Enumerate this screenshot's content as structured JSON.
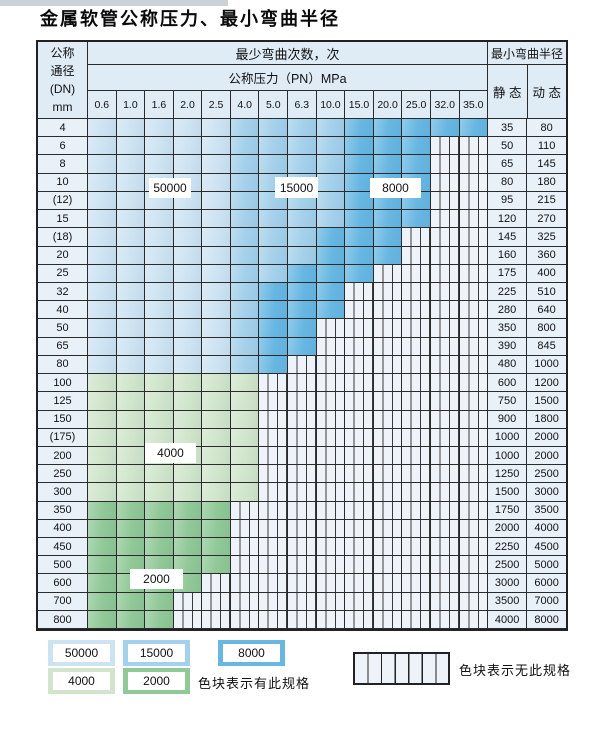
{
  "title": "金属软管公称压力、最小弯曲半径",
  "colors": {
    "cycles_50000": "#cde3f2",
    "cycles_15000": "#a3d0ea",
    "cycles_8000": "#67b7e2",
    "cycles_4000": "#d0e5cb",
    "cycles_2000": "#90c897",
    "no_spec_bg": "#edf3f9",
    "header_bg": "#dfecf6",
    "label_col_bg": "#e9f1f8",
    "grid_line": "#2b2b2b"
  },
  "table": {
    "header": {
      "dn_lines": [
        "公称",
        "通径",
        "(DN)",
        "mm"
      ],
      "bend_cycles_label": "最少弯曲次数，次",
      "pressure_label": "公称压力（PN）MPa",
      "pressure_values": [
        "0.6",
        "1.0",
        "1.6",
        "2.0",
        "2.5",
        "4.0",
        "5.0",
        "6.3",
        "10.0",
        "15.0",
        "20.0",
        "25.0",
        "32.0",
        "35.0"
      ],
      "radius_label": "最小弯曲半径",
      "static_label": "静 态",
      "dynamic_label": "动 态"
    },
    "rows": [
      {
        "dn": "4",
        "static": "35",
        "dynamic": "80",
        "cells": [
          "b1",
          "b1",
          "b1",
          "b1",
          "b1",
          "b2",
          "b2",
          "b2",
          "b2",
          "b3",
          "b3",
          "b3",
          "b3",
          "b3"
        ]
      },
      {
        "dn": "6",
        "static": "50",
        "dynamic": "110",
        "cells": [
          "b1",
          "b1",
          "b1",
          "b1",
          "b1",
          "b2",
          "b2",
          "b2",
          "b2",
          "b3",
          "b3",
          "b3",
          "x",
          "x"
        ]
      },
      {
        "dn": "8",
        "static": "65",
        "dynamic": "145",
        "cells": [
          "b1",
          "b1",
          "b1",
          "b1",
          "b1",
          "b2",
          "b2",
          "b2",
          "b2",
          "b3",
          "b3",
          "b3",
          "x",
          "x"
        ]
      },
      {
        "dn": "10",
        "static": "80",
        "dynamic": "180",
        "cells": [
          "b1",
          "b1",
          "b1",
          "b1",
          "b1",
          "b2",
          "b2",
          "b2",
          "b2",
          "b3",
          "b3",
          "b3",
          "x",
          "x"
        ]
      },
      {
        "dn": "(12)",
        "static": "95",
        "dynamic": "215",
        "cells": [
          "b1",
          "b1",
          "b1",
          "b1",
          "b1",
          "b2",
          "b2",
          "b2",
          "b2",
          "b3",
          "b3",
          "b3",
          "x",
          "x"
        ]
      },
      {
        "dn": "15",
        "static": "120",
        "dynamic": "270",
        "cells": [
          "b1",
          "b1",
          "b1",
          "b1",
          "b1",
          "b2",
          "b2",
          "b2",
          "b2",
          "b3",
          "b3",
          "b3",
          "x",
          "x"
        ]
      },
      {
        "dn": "(18)",
        "static": "145",
        "dynamic": "325",
        "cells": [
          "b1",
          "b1",
          "b1",
          "b1",
          "b1",
          "b2",
          "b2",
          "b2",
          "b3",
          "b3",
          "b3",
          "x",
          "x",
          "x"
        ]
      },
      {
        "dn": "20",
        "static": "160",
        "dynamic": "360",
        "cells": [
          "b1",
          "b1",
          "b1",
          "b1",
          "b1",
          "b2",
          "b2",
          "b2",
          "b3",
          "b3",
          "b3",
          "x",
          "x",
          "x"
        ]
      },
      {
        "dn": "25",
        "static": "175",
        "dynamic": "400",
        "cells": [
          "b1",
          "b1",
          "b1",
          "b1",
          "b1",
          "b2",
          "b2",
          "b3",
          "b3",
          "b3",
          "x",
          "x",
          "x",
          "x"
        ]
      },
      {
        "dn": "32",
        "static": "225",
        "dynamic": "510",
        "cells": [
          "b1",
          "b1",
          "b1",
          "b1",
          "b1",
          "b2",
          "b3",
          "b3",
          "b3",
          "x",
          "x",
          "x",
          "x",
          "x"
        ]
      },
      {
        "dn": "40",
        "static": "280",
        "dynamic": "640",
        "cells": [
          "b1",
          "b1",
          "b1",
          "b1",
          "b1",
          "b2",
          "b3",
          "b3",
          "b3",
          "x",
          "x",
          "x",
          "x",
          "x"
        ]
      },
      {
        "dn": "50",
        "static": "350",
        "dynamic": "800",
        "cells": [
          "b1",
          "b1",
          "b1",
          "b1",
          "b1",
          "b2",
          "b3",
          "b3",
          "x",
          "x",
          "x",
          "x",
          "x",
          "x"
        ]
      },
      {
        "dn": "65",
        "static": "390",
        "dynamic": "845",
        "cells": [
          "b1",
          "b1",
          "b1",
          "b1",
          "b1",
          "b2",
          "b3",
          "b3",
          "x",
          "x",
          "x",
          "x",
          "x",
          "x"
        ]
      },
      {
        "dn": "80",
        "static": "480",
        "dynamic": "1000",
        "cells": [
          "b1",
          "b1",
          "b1",
          "b1",
          "b1",
          "b2",
          "b3",
          "x",
          "x",
          "x",
          "x",
          "x",
          "x",
          "x"
        ]
      },
      {
        "dn": "100",
        "static": "600",
        "dynamic": "1200",
        "cells": [
          "g1",
          "g1",
          "g1",
          "g1",
          "g1",
          "g1",
          "x",
          "x",
          "x",
          "x",
          "x",
          "x",
          "x",
          "x"
        ]
      },
      {
        "dn": "125",
        "static": "750",
        "dynamic": "1500",
        "cells": [
          "g1",
          "g1",
          "g1",
          "g1",
          "g1",
          "g1",
          "x",
          "x",
          "x",
          "x",
          "x",
          "x",
          "x",
          "x"
        ]
      },
      {
        "dn": "150",
        "static": "900",
        "dynamic": "1800",
        "cells": [
          "g1",
          "g1",
          "g1",
          "g1",
          "g1",
          "g1",
          "x",
          "x",
          "x",
          "x",
          "x",
          "x",
          "x",
          "x"
        ]
      },
      {
        "dn": "(175)",
        "static": "1000",
        "dynamic": "2000",
        "cells": [
          "g1",
          "g1",
          "g1",
          "g1",
          "g1",
          "g1",
          "x",
          "x",
          "x",
          "x",
          "x",
          "x",
          "x",
          "x"
        ]
      },
      {
        "dn": "200",
        "static": "1000",
        "dynamic": "2000",
        "cells": [
          "g1",
          "g1",
          "g1",
          "g1",
          "g1",
          "g1",
          "x",
          "x",
          "x",
          "x",
          "x",
          "x",
          "x",
          "x"
        ]
      },
      {
        "dn": "250",
        "static": "1250",
        "dynamic": "2500",
        "cells": [
          "g1",
          "g1",
          "g1",
          "g1",
          "g1",
          "g1",
          "x",
          "x",
          "x",
          "x",
          "x",
          "x",
          "x",
          "x"
        ]
      },
      {
        "dn": "300",
        "static": "1500",
        "dynamic": "3000",
        "cells": [
          "g1",
          "g1",
          "g1",
          "g1",
          "g1",
          "g1",
          "x",
          "x",
          "x",
          "x",
          "x",
          "x",
          "x",
          "x"
        ]
      },
      {
        "dn": "350",
        "static": "1750",
        "dynamic": "3500",
        "cells": [
          "g2",
          "g2",
          "g2",
          "g2",
          "g2",
          "x",
          "x",
          "x",
          "x",
          "x",
          "x",
          "x",
          "x",
          "x"
        ]
      },
      {
        "dn": "400",
        "static": "2000",
        "dynamic": "4000",
        "cells": [
          "g2",
          "g2",
          "g2",
          "g2",
          "g2",
          "x",
          "x",
          "x",
          "x",
          "x",
          "x",
          "x",
          "x",
          "x"
        ]
      },
      {
        "dn": "450",
        "static": "2250",
        "dynamic": "4500",
        "cells": [
          "g2",
          "g2",
          "g2",
          "g2",
          "g2",
          "x",
          "x",
          "x",
          "x",
          "x",
          "x",
          "x",
          "x",
          "x"
        ]
      },
      {
        "dn": "500",
        "static": "2500",
        "dynamic": "5000",
        "cells": [
          "g2",
          "g2",
          "g2",
          "g2",
          "g2",
          "x",
          "x",
          "x",
          "x",
          "x",
          "x",
          "x",
          "x",
          "x"
        ]
      },
      {
        "dn": "600",
        "static": "3000",
        "dynamic": "6000",
        "cells": [
          "g2",
          "g2",
          "g2",
          "g2",
          "x",
          "x",
          "x",
          "x",
          "x",
          "x",
          "x",
          "x",
          "x",
          "x"
        ]
      },
      {
        "dn": "700",
        "static": "3500",
        "dynamic": "7000",
        "cells": [
          "g2",
          "g2",
          "g2",
          "x",
          "x",
          "x",
          "x",
          "x",
          "x",
          "x",
          "x",
          "x",
          "x",
          "x"
        ]
      },
      {
        "dn": "800",
        "static": "4000",
        "dynamic": "8000",
        "cells": [
          "g2",
          "g2",
          "g2",
          "x",
          "x",
          "x",
          "x",
          "x",
          "x",
          "x",
          "x",
          "x",
          "x",
          "x"
        ]
      }
    ]
  },
  "legend": {
    "items": [
      {
        "label": "50000",
        "zone": "b1"
      },
      {
        "label": "15000",
        "zone": "b2"
      },
      {
        "label": "8000",
        "zone": "b3"
      },
      {
        "label": "4000",
        "zone": "g1"
      },
      {
        "label": "2000",
        "zone": "g2"
      }
    ],
    "has_spec_text": "色块表示有此规格",
    "no_spec_text": "色块表示无此规格"
  }
}
